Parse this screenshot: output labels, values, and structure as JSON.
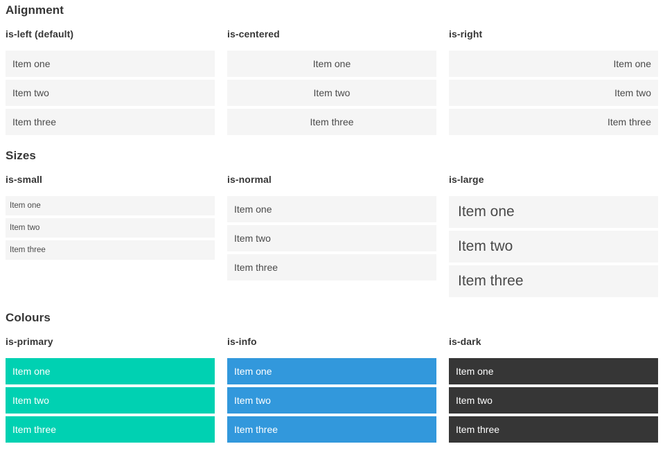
{
  "colors": {
    "primary": "#00d1b2",
    "info": "#3298dc",
    "dark": "#363636",
    "item_bg": "#f5f5f5",
    "heading_text": "#363636",
    "item_text": "#4a4a4a",
    "on_color_text": "#ffffff"
  },
  "sections": [
    {
      "title": "Alignment",
      "groups": [
        {
          "heading": "is-left (default)",
          "variant": "align-left",
          "items": [
            "Item one",
            "Item two",
            "Item three"
          ]
        },
        {
          "heading": "is-centered",
          "variant": "align-centered",
          "items": [
            "Item one",
            "Item two",
            "Item three"
          ]
        },
        {
          "heading": "is-right",
          "variant": "align-right",
          "items": [
            "Item one",
            "Item two",
            "Item three"
          ]
        }
      ]
    },
    {
      "title": "Sizes",
      "groups": [
        {
          "heading": "is-small",
          "variant": "size-small",
          "items": [
            "Item one",
            "Item two",
            "Item three"
          ]
        },
        {
          "heading": "is-normal",
          "variant": "size-normal",
          "items": [
            "Item one",
            "Item two",
            "Item three"
          ]
        },
        {
          "heading": "is-large",
          "variant": "size-large",
          "items": [
            "Item one",
            "Item two",
            "Item three"
          ]
        }
      ]
    },
    {
      "title": "Colours",
      "groups": [
        {
          "heading": "is-primary",
          "variant": "color-primary",
          "items": [
            "Item one",
            "Item two",
            "Item three"
          ]
        },
        {
          "heading": "is-info",
          "variant": "color-info",
          "items": [
            "Item one",
            "Item two",
            "Item three"
          ]
        },
        {
          "heading": "is-dark",
          "variant": "color-dark",
          "items": [
            "Item one",
            "Item two",
            "Item three"
          ]
        }
      ]
    }
  ]
}
